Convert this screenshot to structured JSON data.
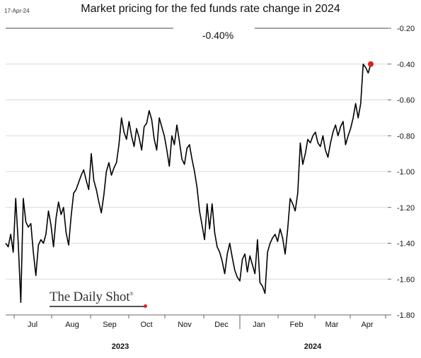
{
  "date_stamp": "17-Apr-24",
  "subtitle": "-0.40%",
  "brand": {
    "name": "The Daily Shot",
    "registered": "®"
  },
  "colors": {
    "line": "#000000",
    "marker": "#e0201d",
    "grid": "#d9d9d9",
    "axis": "#666666"
  },
  "chart_data": {
    "type": "line",
    "title": "Market pricing for the fed funds rate change in 2024",
    "xlabel": "",
    "ylabel": "",
    "ylim": [
      -1.8,
      -0.2
    ],
    "yticks": [
      -0.2,
      -0.4,
      -0.6,
      -0.8,
      -1.0,
      -1.2,
      -1.4,
      -1.6,
      -1.8
    ],
    "ytick_labels": [
      "-0.20",
      "-0.40",
      "-0.60",
      "-0.80",
      "-1.00",
      "-1.20",
      "-1.40",
      "-1.60",
      "-1.80"
    ],
    "y_axis_position": "right",
    "grid": "horizontal",
    "month_labels": [
      "Jul",
      "Aug",
      "Sep",
      "Oct",
      "Nov",
      "Dec",
      "Jan",
      "Feb",
      "Mar",
      "Apr"
    ],
    "year_labels": [
      "2023",
      "2024"
    ],
    "series": [
      {
        "values": [
          -1.4,
          -1.42,
          -1.35,
          -1.45,
          -1.15,
          -1.4,
          -1.73,
          -1.15,
          -1.28,
          -1.31,
          -1.29,
          -1.45,
          -1.58,
          -1.41,
          -1.38,
          -1.4,
          -1.35,
          -1.22,
          -1.3,
          -1.42,
          -1.26,
          -1.17,
          -1.24,
          -1.2,
          -1.34,
          -1.41,
          -1.25,
          -1.12,
          -1.1,
          -1.06,
          -1.02,
          -0.99,
          -1.05,
          -1.1,
          -0.9,
          -1.05,
          -1.1,
          -1.17,
          -1.23,
          -1.13,
          -1.0,
          -0.95,
          -1.02,
          -0.98,
          -0.95,
          -0.85,
          -0.7,
          -0.78,
          -0.82,
          -0.72,
          -0.8,
          -0.86,
          -0.76,
          -0.81,
          -0.88,
          -0.75,
          -0.73,
          -0.66,
          -0.71,
          -0.82,
          -0.88,
          -0.7,
          -0.75,
          -0.8,
          -0.88,
          -0.97,
          -0.8,
          -0.85,
          -0.74,
          -0.83,
          -0.93,
          -0.96,
          -0.87,
          -0.85,
          -0.93,
          -1.0,
          -1.09,
          -1.22,
          -1.3,
          -1.38,
          -1.18,
          -1.32,
          -1.18,
          -1.34,
          -1.42,
          -1.45,
          -1.5,
          -1.57,
          -1.46,
          -1.4,
          -1.48,
          -1.55,
          -1.59,
          -1.61,
          -1.49,
          -1.46,
          -1.56,
          -1.47,
          -1.52,
          -1.57,
          -1.38,
          -1.62,
          -1.64,
          -1.68,
          -1.45,
          -1.4,
          -1.37,
          -1.35,
          -1.39,
          -1.32,
          -1.37,
          -1.46,
          -1.32,
          -1.15,
          -1.18,
          -1.22,
          -1.12,
          -0.84,
          -0.96,
          -0.9,
          -0.82,
          -0.84,
          -0.8,
          -0.78,
          -0.84,
          -0.86,
          -0.8,
          -0.88,
          -0.92,
          -0.84,
          -0.78,
          -0.74,
          -0.8,
          -0.75,
          -0.72,
          -0.85,
          -0.8,
          -0.76,
          -0.7,
          -0.62,
          -0.7,
          -0.62,
          -0.4,
          -0.42,
          -0.45,
          -0.4
        ]
      }
    ],
    "last_point_marker": {
      "value": -0.4,
      "label": "-0.40%"
    }
  }
}
